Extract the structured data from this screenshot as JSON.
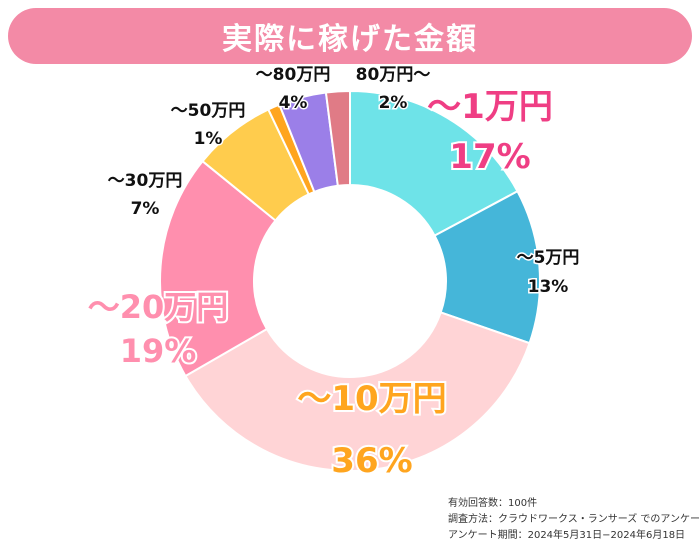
{
  "title": "実際に稼げた金額",
  "chart_data": {
    "type": "pie",
    "donut": true,
    "title": "実際に稼げた金額",
    "categories": [
      "〜1万円",
      "〜5万円",
      "〜10万円",
      "〜20万円",
      "〜30万円",
      "〜50万円",
      "〜80万円",
      "80万円〜"
    ],
    "values": [
      17,
      13,
      36,
      19,
      7,
      1,
      4,
      2
    ],
    "percent_labels": [
      "17%",
      "13%",
      "36%",
      "19%",
      "7%",
      "1%",
      "4%",
      "2%"
    ],
    "colors": [
      "#6ee3e8",
      "#45b6d9",
      "#ffd4d6",
      "#ff8fae",
      "#ffcc4d",
      "#ffa51f",
      "#9b7fe8",
      "#e07b86"
    ],
    "label_colors": [
      "#ef3e84",
      "#111111",
      "#ffa51f",
      "#ff8fae",
      "#111111",
      "#111111",
      "#111111",
      "#111111"
    ],
    "label_style": [
      "large",
      "small",
      "large",
      "large-outline",
      "small",
      "small",
      "small",
      "small"
    ]
  },
  "footnote": {
    "respondents": "有効回答数：100件",
    "method": "調査方法：クラウドワークス・ランサーズ でのアンケート",
    "period": "アンケート期間：2024年5月31日−2024年6月18日"
  }
}
